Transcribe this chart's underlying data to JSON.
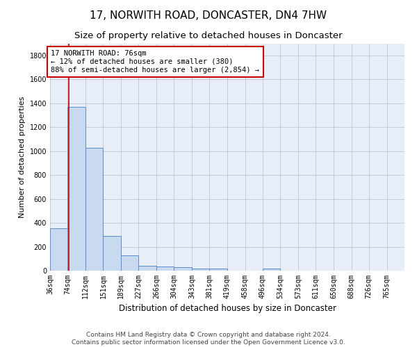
{
  "title": "17, NORWITH ROAD, DONCASTER, DN4 7HW",
  "subtitle": "Size of property relative to detached houses in Doncaster",
  "xlabel": "Distribution of detached houses by size in Doncaster",
  "ylabel": "Number of detached properties",
  "bar_color": "#c9d9f0",
  "bar_edge_color": "#5b8cc8",
  "background_color": "#e8eef8",
  "grid_color": "#bbbbcc",
  "property_line_x": 76,
  "property_line_color": "#cc0000",
  "annotation_text": "17 NORWITH ROAD: 76sqm\n← 12% of detached houses are smaller (380)\n88% of semi-detached houses are larger (2,854) →",
  "annotation_box_color": "#cc0000",
  "bin_edges": [
    36,
    74,
    112,
    151,
    189,
    227,
    266,
    304,
    343,
    381,
    419,
    458,
    496,
    534,
    573,
    611,
    650,
    688,
    726,
    765,
    803
  ],
  "bin_values": [
    355,
    1370,
    1025,
    290,
    130,
    42,
    35,
    30,
    20,
    15,
    0,
    0,
    20,
    0,
    0,
    0,
    0,
    0,
    0,
    0
  ],
  "ylim": [
    0,
    1900
  ],
  "yticks": [
    0,
    200,
    400,
    600,
    800,
    1000,
    1200,
    1400,
    1600,
    1800
  ],
  "footer_text": "Contains HM Land Registry data © Crown copyright and database right 2024.\nContains public sector information licensed under the Open Government Licence v3.0.",
  "title_fontsize": 11,
  "subtitle_fontsize": 9.5,
  "axis_label_fontsize": 8,
  "tick_fontsize": 7,
  "footer_fontsize": 6.5,
  "annotation_fontsize": 7.5
}
